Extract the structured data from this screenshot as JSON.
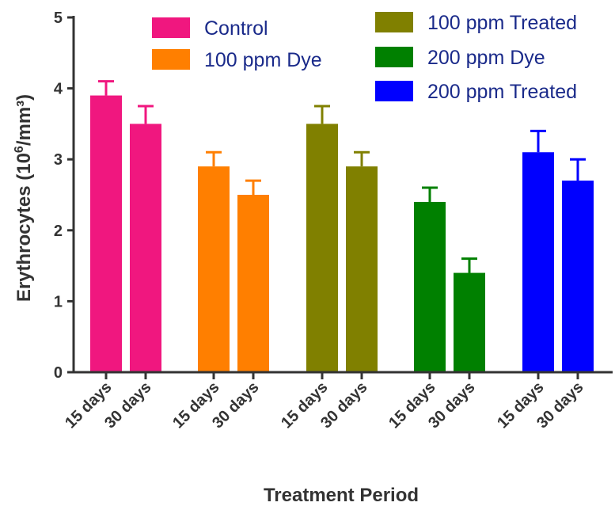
{
  "chart_data": {
    "type": "bar",
    "xlabel": "Treatment Period",
    "ylabel_main": "Erythrocytes (10",
    "ylabel_sup": "6",
    "ylabel_rest": "/mm³)",
    "ylim": [
      0,
      5
    ],
    "yticks": [
      "0",
      "1",
      "2",
      "3",
      "4",
      "5"
    ],
    "legend_position": "top",
    "categories": [
      "15 days",
      "30 days"
    ],
    "series": [
      {
        "name": "Control",
        "color": "#f0177f",
        "values": [
          3.9,
          3.5
        ],
        "errors": [
          0.2,
          0.25
        ]
      },
      {
        "name": "100 ppm Dye",
        "color": "#ff7f00",
        "values": [
          2.9,
          2.5
        ],
        "errors": [
          0.2,
          0.2
        ]
      },
      {
        "name": "100 ppm Treated",
        "color": "#808000",
        "values": [
          3.5,
          2.9
        ],
        "errors": [
          0.25,
          0.2
        ]
      },
      {
        "name": "200 ppm Dye",
        "color": "#008000",
        "values": [
          2.4,
          1.4
        ],
        "errors": [
          0.2,
          0.2
        ]
      },
      {
        "name": "200 ppm Treated",
        "color": "#0000ff",
        "values": [
          3.1,
          2.7
        ],
        "errors": [
          0.3,
          0.3
        ]
      }
    ]
  }
}
